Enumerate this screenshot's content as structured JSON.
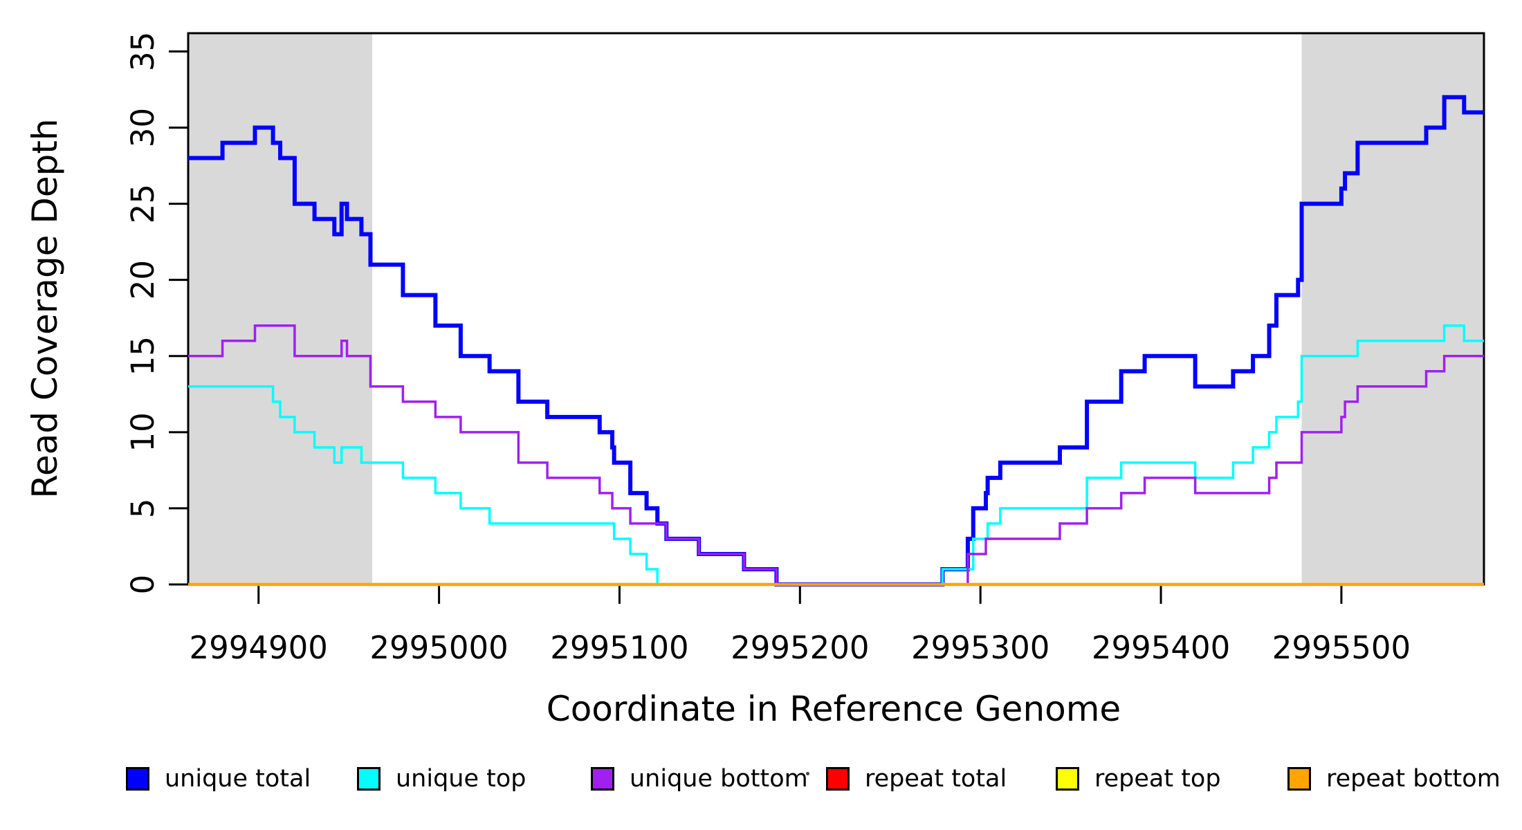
{
  "chart_data": {
    "type": "line",
    "subtype": "step-coverage-plot",
    "title": "",
    "xlabel": "Coordinate in Reference Genome",
    "ylabel": "Read Coverage Depth",
    "xlim": [
      2994861,
      2995579
    ],
    "ylim": [
      0,
      36.2
    ],
    "x_ticks": [
      2994900,
      2995000,
      2995100,
      2995200,
      2995300,
      2995400,
      2995500
    ],
    "y_ticks": [
      0,
      5,
      10,
      15,
      20,
      25,
      30,
      35
    ],
    "grid": false,
    "background_color": "#FFFFFF",
    "box_color": "#000000",
    "shade_color": "#D9D9D9",
    "shaded_regions": [
      {
        "from": 2994861,
        "to": 2994963
      },
      {
        "from": 2995478,
        "to": 2995579
      }
    ],
    "series": [
      {
        "name": "unique total",
        "color": "#0000FF",
        "width": 6,
        "steps": [
          [
            2994861,
            28
          ],
          [
            2994880,
            29
          ],
          [
            2994898,
            30
          ],
          [
            2994908,
            29
          ],
          [
            2994912,
            28
          ],
          [
            2994920,
            25
          ],
          [
            2994931,
            24
          ],
          [
            2994942,
            23
          ],
          [
            2994946,
            25
          ],
          [
            2994949,
            24
          ],
          [
            2994957,
            23
          ],
          [
            2994962,
            21
          ],
          [
            2994980,
            19
          ],
          [
            2994998,
            17
          ],
          [
            2995012,
            15
          ],
          [
            2995028,
            14
          ],
          [
            2995044,
            12
          ],
          [
            2995060,
            11
          ],
          [
            2995089,
            10
          ],
          [
            2995096,
            9
          ],
          [
            2995097,
            8
          ],
          [
            2995106,
            6
          ],
          [
            2995115,
            5
          ],
          [
            2995121,
            4
          ],
          [
            2995126,
            3
          ],
          [
            2995144,
            2
          ],
          [
            2995169,
            1
          ],
          [
            2995187,
            0
          ],
          [
            2995279,
            1
          ],
          [
            2995293,
            3
          ],
          [
            2995296,
            5
          ],
          [
            2995303,
            6
          ],
          [
            2995304,
            7
          ],
          [
            2995311,
            8
          ],
          [
            2995344,
            9
          ],
          [
            2995359,
            12
          ],
          [
            2995378,
            14
          ],
          [
            2995391,
            15
          ],
          [
            2995419,
            13
          ],
          [
            2995440,
            14
          ],
          [
            2995451,
            15
          ],
          [
            2995460,
            17
          ],
          [
            2995464,
            19
          ],
          [
            2995476,
            20
          ],
          [
            2995478,
            25
          ],
          [
            2995500,
            26
          ],
          [
            2995502,
            27
          ],
          [
            2995509,
            29
          ],
          [
            2995547,
            30
          ],
          [
            2995557,
            32
          ],
          [
            2995568,
            31
          ]
        ]
      },
      {
        "name": "unique top",
        "color": "#00FFFF",
        "width": 3.5,
        "steps": [
          [
            2994861,
            13
          ],
          [
            2994908,
            12
          ],
          [
            2994912,
            11
          ],
          [
            2994920,
            10
          ],
          [
            2994931,
            9
          ],
          [
            2994942,
            8
          ],
          [
            2994946,
            9
          ],
          [
            2994957,
            8
          ],
          [
            2994980,
            7
          ],
          [
            2994998,
            6
          ],
          [
            2995012,
            5
          ],
          [
            2995028,
            4
          ],
          [
            2995097,
            3
          ],
          [
            2995106,
            2
          ],
          [
            2995115,
            1
          ],
          [
            2995121,
            0
          ],
          [
            2995279,
            1
          ],
          [
            2995296,
            3
          ],
          [
            2995304,
            4
          ],
          [
            2995311,
            5
          ],
          [
            2995359,
            7
          ],
          [
            2995378,
            8
          ],
          [
            2995419,
            7
          ],
          [
            2995440,
            8
          ],
          [
            2995451,
            9
          ],
          [
            2995460,
            10
          ],
          [
            2995464,
            11
          ],
          [
            2995476,
            12
          ],
          [
            2995478,
            15
          ],
          [
            2995509,
            16
          ],
          [
            2995557,
            17
          ],
          [
            2995568,
            16
          ]
        ]
      },
      {
        "name": "unique bottom",
        "color": "#A020F0",
        "width": 3.5,
        "steps": [
          [
            2994861,
            15
          ],
          [
            2994880,
            16
          ],
          [
            2994898,
            17
          ],
          [
            2994920,
            15
          ],
          [
            2994946,
            16
          ],
          [
            2994949,
            15
          ],
          [
            2994962,
            13
          ],
          [
            2994980,
            12
          ],
          [
            2994998,
            11
          ],
          [
            2995012,
            10
          ],
          [
            2995044,
            8
          ],
          [
            2995060,
            7
          ],
          [
            2995089,
            6
          ],
          [
            2995096,
            5
          ],
          [
            2995106,
            4
          ],
          [
            2995126,
            3
          ],
          [
            2995144,
            2
          ],
          [
            2995169,
            1
          ],
          [
            2995187,
            0
          ],
          [
            2995293,
            2
          ],
          [
            2995303,
            3
          ],
          [
            2995344,
            4
          ],
          [
            2995359,
            5
          ],
          [
            2995378,
            6
          ],
          [
            2995391,
            7
          ],
          [
            2995419,
            6
          ],
          [
            2995460,
            7
          ],
          [
            2995464,
            8
          ],
          [
            2995478,
            10
          ],
          [
            2995500,
            11
          ],
          [
            2995502,
            12
          ],
          [
            2995509,
            13
          ],
          [
            2995547,
            14
          ],
          [
            2995557,
            15
          ]
        ]
      },
      {
        "name": "repeat total",
        "color": "#FF0000",
        "width": 3,
        "steps": [
          [
            2994861,
            0
          ]
        ]
      },
      {
        "name": "repeat top",
        "color": "#FFFF00",
        "width": 3,
        "steps": [
          [
            2994861,
            0
          ]
        ]
      },
      {
        "name": "repeat bottom",
        "color": "#FFA500",
        "width": 4.5,
        "steps": [
          [
            2994861,
            0
          ]
        ]
      }
    ],
    "legend_position": "bottom"
  },
  "legend": {
    "items": [
      {
        "label": "unique total",
        "color": "#0000FF"
      },
      {
        "label": "unique top",
        "color": "#00FFFF"
      },
      {
        "label": "unique bottom",
        "color": "#A020F0"
      },
      {
        "label": "repeat total",
        "color": "#FF0000"
      },
      {
        "label": "repeat top",
        "color": "#FFFF00"
      },
      {
        "label": "repeat bottom",
        "color": "#FFA500"
      }
    ]
  },
  "axes": {
    "x_title": "Coordinate in Reference Genome",
    "y_title": "Read Coverage Depth"
  }
}
